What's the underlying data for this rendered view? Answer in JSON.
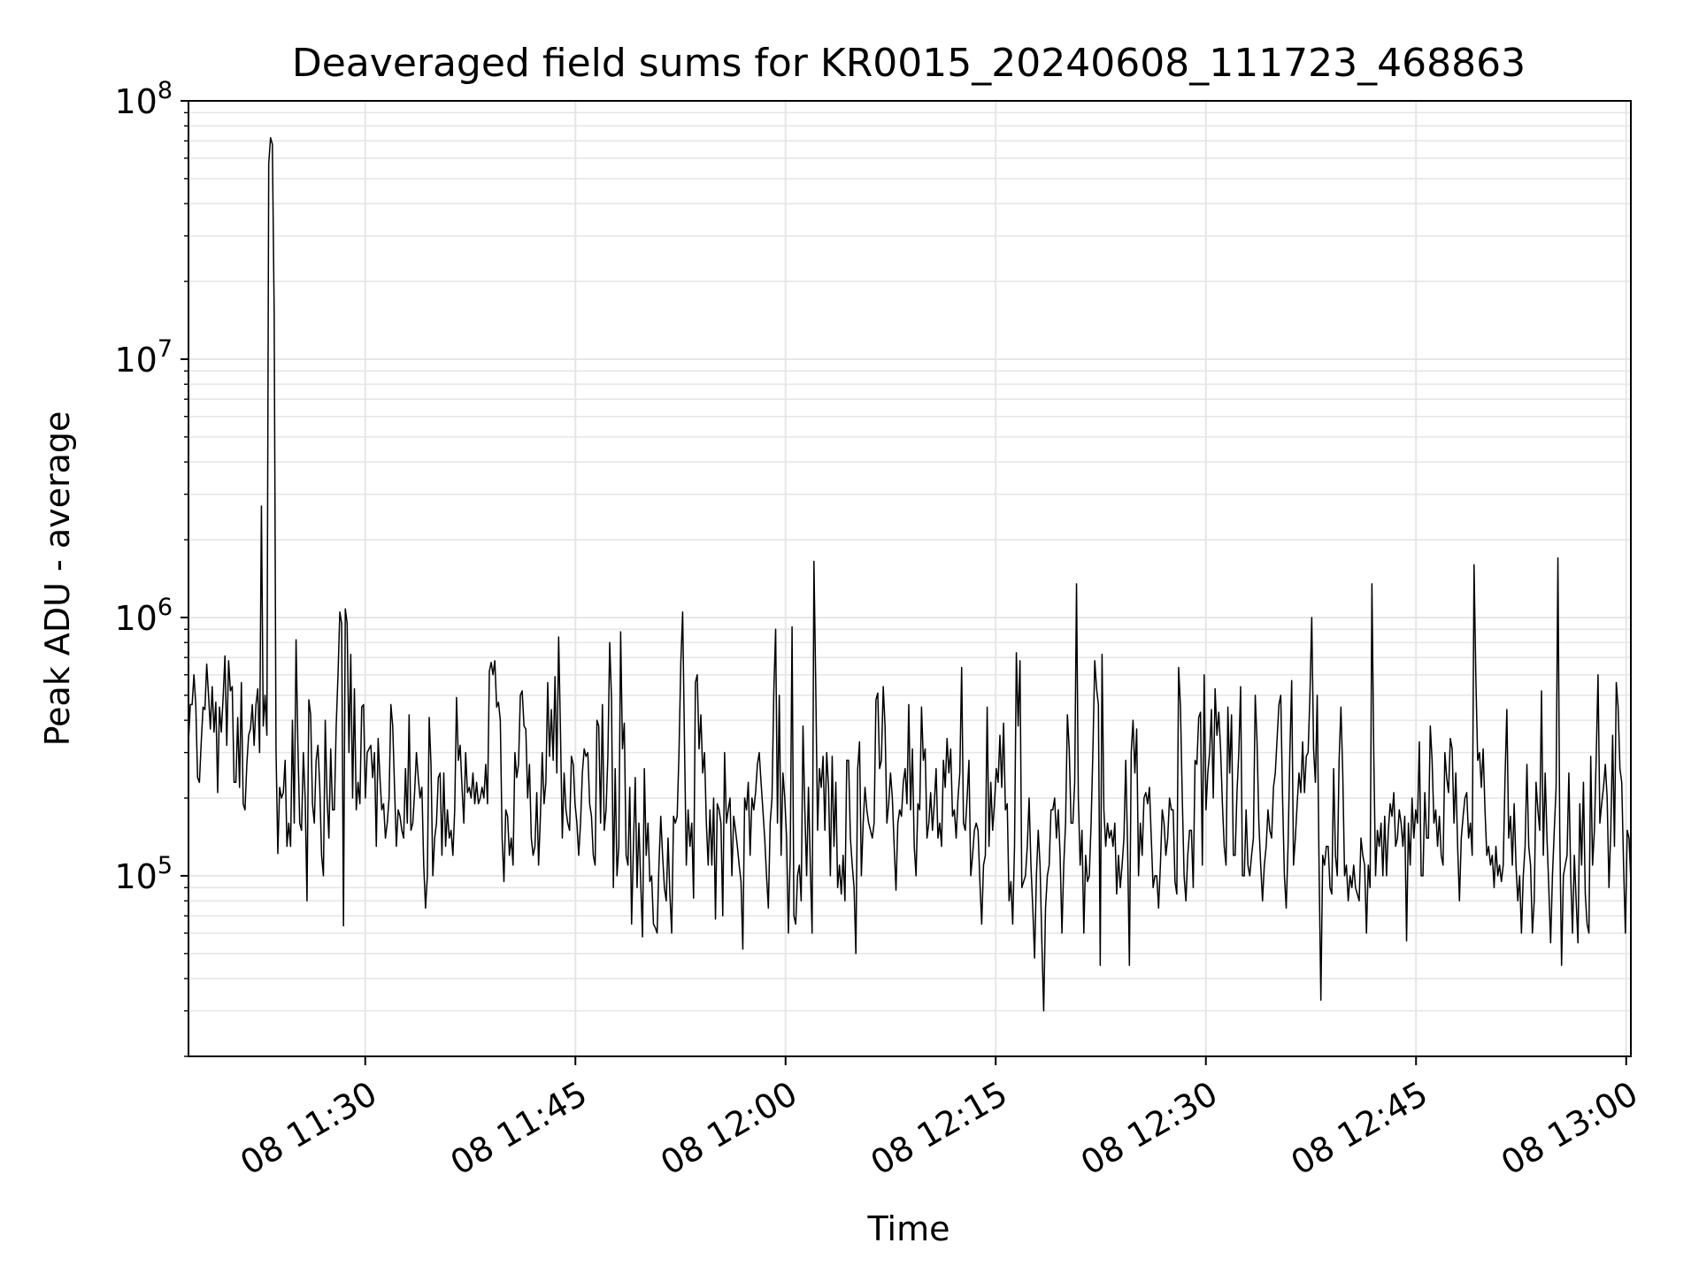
{
  "colors": {
    "background": "#ffffff",
    "line": "#000000",
    "grid": "#e6e6e6",
    "axis": "#000000"
  },
  "chart_data": {
    "type": "line",
    "title": "Deaveraged field sums for KR0015_20240608_111723_468863",
    "xlabel": "Time",
    "ylabel": "Peak ADU - average",
    "yscale": "log",
    "grid": true,
    "xlim": [
      "2024-06-08 11:17:23",
      "2024-06-08 13:00:20"
    ],
    "ylim": [
      20000,
      100000000
    ],
    "x_ticks": [
      {
        "value": "2024-06-08 11:30:00",
        "label": "08 11:30"
      },
      {
        "value": "2024-06-08 11:45:00",
        "label": "08 11:45"
      },
      {
        "value": "2024-06-08 12:00:00",
        "label": "08 12:00"
      },
      {
        "value": "2024-06-08 12:15:00",
        "label": "08 12:15"
      },
      {
        "value": "2024-06-08 12:30:00",
        "label": "08 12:30"
      },
      {
        "value": "2024-06-08 12:45:00",
        "label": "08 12:45"
      },
      {
        "value": "2024-06-08 13:00:00",
        "label": "08 13:00"
      }
    ],
    "y_ticks": [
      {
        "value": 100000,
        "base": "10",
        "exp": "5"
      },
      {
        "value": 1000000,
        "base": "10",
        "exp": "6"
      },
      {
        "value": 10000000,
        "base": "10",
        "exp": "7"
      },
      {
        "value": 100000000,
        "base": "10",
        "exp": "8"
      }
    ],
    "series": [
      {
        "x_start": "2024-06-08 11:17:23",
        "x_end": "2024-06-08 13:00:20",
        "values": [
          330000,
          460000,
          460000,
          600000,
          460000,
          240000,
          230000,
          330000,
          450000,
          440000,
          660000,
          500000,
          370000,
          540000,
          360000,
          470000,
          210000,
          450000,
          360000,
          490000,
          710000,
          320000,
          680000,
          520000,
          540000,
          230000,
          230000,
          410000,
          220000,
          560000,
          190000,
          180000,
          270000,
          350000,
          370000,
          460000,
          320000,
          460000,
          530000,
          300000,
          2700000,
          380000,
          500000,
          350000,
          57000000,
          72000000,
          68000000,
          15000000,
          310000,
          122000,
          220000,
          200000,
          210000,
          280000,
          130000,
          160000,
          130000,
          400000,
          160000,
          820000,
          320000,
          160000,
          150000,
          300000,
          200000,
          80000,
          480000,
          420000,
          190000,
          160000,
          280000,
          320000,
          220000,
          120000,
          100000,
          400000,
          200000,
          140000,
          310000,
          180000,
          180000,
          380000,
          600000,
          1050000,
          950000,
          64000,
          1080000,
          950000,
          300000,
          720000,
          200000,
          530000,
          180000,
          230000,
          190000,
          450000,
          460000,
          200000,
          300000,
          310000,
          320000,
          240000,
          300000,
          130000,
          340000,
          240000,
          180000,
          190000,
          140000,
          160000,
          200000,
          460000,
          380000,
          220000,
          130000,
          180000,
          170000,
          150000,
          140000,
          260000,
          160000,
          420000,
          150000,
          160000,
          210000,
          300000,
          240000,
          200000,
          220000,
          110000,
          75000,
          100000,
          410000,
          270000,
          100000,
          140000,
          160000,
          240000,
          250000,
          120000,
          250000,
          130000,
          180000,
          140000,
          150000,
          120000,
          180000,
          490000,
          280000,
          320000,
          220000,
          160000,
          300000,
          210000,
          220000,
          200000,
          250000,
          190000,
          230000,
          190000,
          200000,
          220000,
          200000,
          270000,
          190000,
          620000,
          670000,
          600000,
          680000,
          450000,
          470000,
          400000,
          140000,
          95000,
          180000,
          170000,
          120000,
          140000,
          110000,
          300000,
          240000,
          270000,
          500000,
          520000,
          380000,
          370000,
          200000,
          270000,
          140000,
          120000,
          130000,
          210000,
          110000,
          170000,
          300000,
          190000,
          230000,
          560000,
          290000,
          440000,
          280000,
          590000,
          250000,
          840000,
          360000,
          140000,
          250000,
          180000,
          160000,
          150000,
          290000,
          270000,
          190000,
          160000,
          120000,
          160000,
          250000,
          310000,
          290000,
          300000,
          190000,
          170000,
          120000,
          110000,
          400000,
          380000,
          160000,
          460000,
          150000,
          180000,
          290000,
          800000,
          480000,
          90000,
          260000,
          100000,
          130000,
          880000,
          310000,
          390000,
          120000,
          110000,
          220000,
          65000,
          130000,
          240000,
          90000,
          160000,
          95000,
          58000,
          260000,
          120000,
          160000,
          95000,
          100000,
          65000,
          63000,
          60000,
          110000,
          170000,
          120000,
          90000,
          80000,
          140000,
          85000,
          60000,
          170000,
          160000,
          170000,
          300000,
          670000,
          1050000,
          330000,
          110000,
          180000,
          130000,
          160000,
          82000,
          560000,
          600000,
          310000,
          420000,
          250000,
          300000,
          160000,
          110000,
          180000,
          110000,
          200000,
          68000,
          190000,
          180000,
          160000,
          70000,
          300000,
          160000,
          180000,
          200000,
          100000,
          170000,
          150000,
          130000,
          110000,
          95000,
          52000,
          200000,
          180000,
          230000,
          120000,
          200000,
          180000,
          210000,
          270000,
          300000,
          230000,
          180000,
          140000,
          100000,
          75000,
          160000,
          200000,
          520000,
          900000,
          160000,
          500000,
          120000,
          250000,
          200000,
          140000,
          60000,
          120000,
          920000,
          70000,
          65000,
          100000,
          110000,
          80000,
          380000,
          180000,
          100000,
          220000,
          110000,
          60000,
          1650000,
          540000,
          150000,
          260000,
          220000,
          290000,
          150000,
          300000,
          220000,
          100000,
          290000,
          130000,
          230000,
          90000,
          110000,
          85000,
          120000,
          80000,
          280000,
          280000,
          140000,
          110000,
          90000,
          50000,
          260000,
          330000,
          100000,
          160000,
          220000,
          180000,
          160000,
          150000,
          140000,
          160000,
          480000,
          510000,
          260000,
          280000,
          540000,
          380000,
          160000,
          190000,
          250000,
          200000,
          130000,
          88000,
          160000,
          180000,
          170000,
          230000,
          260000,
          190000,
          460000,
          180000,
          310000,
          130000,
          100000,
          190000,
          180000,
          450000,
          280000,
          310000,
          140000,
          160000,
          210000,
          150000,
          190000,
          260000,
          140000,
          160000,
          130000,
          280000,
          220000,
          340000,
          250000,
          310000,
          170000,
          180000,
          140000,
          200000,
          250000,
          640000,
          160000,
          150000,
          200000,
          280000,
          100000,
          120000,
          150000,
          160000,
          150000,
          95000,
          65000,
          110000,
          120000,
          450000,
          130000,
          230000,
          150000,
          190000,
          260000,
          230000,
          350000,
          220000,
          390000,
          180000,
          190000,
          80000,
          95000,
          65000,
          130000,
          730000,
          380000,
          680000,
          90000,
          95000,
          100000,
          130000,
          200000,
          110000,
          75000,
          48000,
          100000,
          150000,
          110000,
          55000,
          30000,
          75000,
          100000,
          110000,
          180000,
          180000,
          200000,
          140000,
          180000,
          120000,
          60000,
          110000,
          160000,
          420000,
          310000,
          160000,
          160000,
          230000,
          1350000,
          200000,
          110000,
          150000,
          60000,
          120000,
          95000,
          100000,
          160000,
          310000,
          680000,
          530000,
          460000,
          45000,
          720000,
          180000,
          130000,
          160000,
          140000,
          150000,
          130000,
          160000,
          85000,
          120000,
          90000,
          110000,
          140000,
          280000,
          130000,
          45000,
          300000,
          400000,
          250000,
          370000,
          100000,
          160000,
          120000,
          200000,
          210000,
          190000,
          220000,
          140000,
          90000,
          100000,
          100000,
          75000,
          110000,
          180000,
          160000,
          120000,
          140000,
          200000,
          180000,
          180000,
          95000,
          85000,
          640000,
          450000,
          200000,
          100000,
          80000,
          120000,
          150000,
          150000,
          90000,
          280000,
          270000,
          410000,
          430000,
          110000,
          600000,
          180000,
          250000,
          300000,
          440000,
          200000,
          530000,
          350000,
          430000,
          310000,
          190000,
          130000,
          110000,
          450000,
          250000,
          420000,
          120000,
          120000,
          210000,
          300000,
          540000,
          100000,
          100000,
          180000,
          110000,
          100000,
          120000,
          140000,
          500000,
          330000,
          160000,
          110000,
          80000,
          110000,
          130000,
          180000,
          150000,
          140000,
          220000,
          250000,
          340000,
          460000,
          500000,
          200000,
          100000,
          75000,
          130000,
          300000,
          570000,
          110000,
          140000,
          190000,
          250000,
          210000,
          330000,
          210000,
          290000,
          300000,
          500000,
          1000000,
          310000,
          230000,
          500000,
          110000,
          33000,
          120000,
          110000,
          130000,
          130000,
          90000,
          85000,
          260000,
          120000,
          100000,
          280000,
          450000,
          250000,
          100000,
          110000,
          80000,
          100000,
          90000,
          110000,
          90000,
          85000,
          80000,
          140000,
          120000,
          110000,
          60000,
          110000,
          90000,
          1350000,
          300000,
          100000,
          150000,
          130000,
          160000,
          100000,
          170000,
          100000,
          150000,
          190000,
          170000,
          210000,
          130000,
          140000,
          180000,
          160000,
          130000,
          170000,
          56000,
          160000,
          110000,
          200000,
          140000,
          180000,
          160000,
          330000,
          100000,
          100000,
          210000,
          140000,
          140000,
          380000,
          280000,
          160000,
          180000,
          130000,
          170000,
          120000,
          110000,
          300000,
          240000,
          210000,
          340000,
          310000,
          160000,
          250000,
          130000,
          80000,
          140000,
          170000,
          200000,
          210000,
          140000,
          160000,
          120000,
          1600000,
          580000,
          280000,
          300000,
          220000,
          310000,
          180000,
          120000,
          130000,
          110000,
          120000,
          90000,
          130000,
          100000,
          110000,
          95000,
          110000,
          240000,
          440000,
          140000,
          170000,
          110000,
          190000,
          110000,
          80000,
          100000,
          60000,
          100000,
          130000,
          270000,
          130000,
          110000,
          60000,
          80000,
          230000,
          180000,
          150000,
          520000,
          120000,
          250000,
          140000,
          90000,
          55000,
          100000,
          150000,
          220000,
          1700000,
          150000,
          45000,
          100000,
          110000,
          120000,
          250000,
          100000,
          60000,
          120000,
          80000,
          55000,
          190000,
          110000,
          230000,
          85000,
          65000,
          60000,
          290000,
          110000,
          150000,
          290000,
          600000,
          160000,
          190000,
          220000,
          270000,
          200000,
          90000,
          150000,
          350000,
          130000,
          560000,
          450000,
          260000,
          230000,
          110000,
          60000,
          150000,
          140000,
          95000
        ]
      }
    ]
  }
}
